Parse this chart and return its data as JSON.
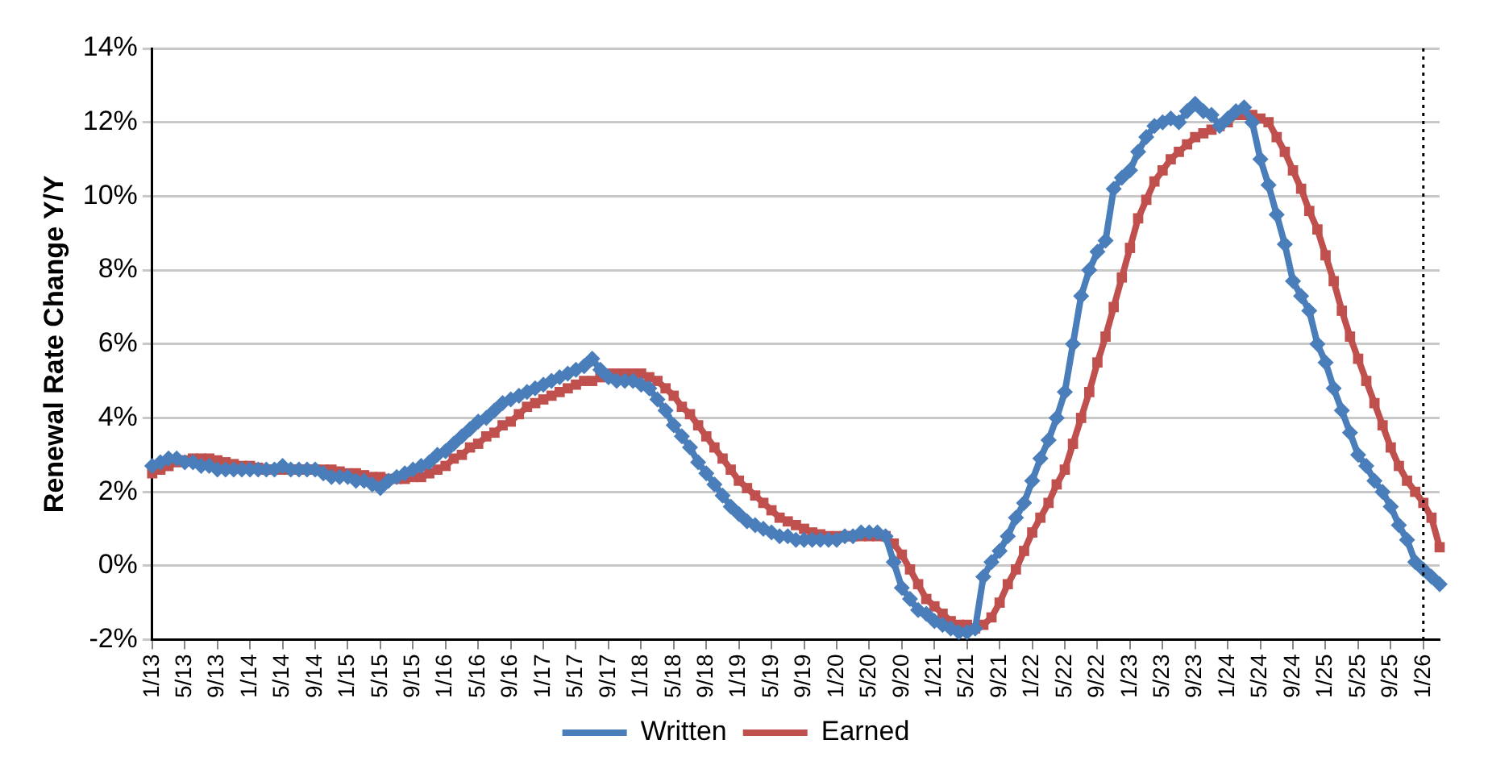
{
  "chart_data": {
    "type": "line",
    "ylabel": "Renewal Rate Change Y/Y",
    "categories": [
      "1/13",
      null,
      null,
      null,
      "5/13",
      null,
      null,
      null,
      "9/13",
      null,
      null,
      null,
      "1/14",
      null,
      null,
      null,
      "5/14",
      null,
      null,
      null,
      "9/14",
      null,
      null,
      null,
      "1/15",
      null,
      null,
      null,
      "5/15",
      null,
      null,
      null,
      "9/15",
      null,
      null,
      null,
      "1/16",
      null,
      null,
      null,
      "5/16",
      null,
      null,
      null,
      "9/16",
      null,
      null,
      null,
      "1/17",
      null,
      null,
      null,
      "5/17",
      null,
      null,
      null,
      "9/17",
      null,
      null,
      null,
      "1/18",
      null,
      null,
      null,
      "5/18",
      null,
      null,
      null,
      "9/18",
      null,
      null,
      null,
      "1/19",
      null,
      null,
      null,
      "5/19",
      null,
      null,
      null,
      "9/19",
      null,
      null,
      null,
      "1/20",
      null,
      null,
      null,
      "5/20",
      null,
      null,
      null,
      "9/20",
      null,
      null,
      null,
      "1/21",
      null,
      null,
      null,
      "5/21",
      null,
      null,
      null,
      "9/21",
      null,
      null,
      null,
      "1/22",
      null,
      null,
      null,
      "5/22",
      null,
      null,
      null,
      "9/22",
      null,
      null,
      null,
      "1/23",
      null,
      null,
      null,
      "5/23",
      null,
      null,
      null,
      "9/23",
      null,
      null,
      null,
      "1/24",
      null,
      null,
      null,
      "5/24",
      null,
      null,
      null,
      "9/24",
      null,
      null,
      null,
      "1/25",
      null,
      null,
      null,
      "5/25",
      null,
      null,
      null,
      "9/25",
      null,
      null,
      null,
      "1/26",
      null,
      null
    ],
    "series": [
      {
        "name": "Written",
        "color": "#4a7ebb",
        "marker": "diamond",
        "values": [
          2.7,
          2.8,
          2.9,
          2.9,
          2.8,
          2.8,
          2.7,
          2.7,
          2.6,
          2.6,
          2.6,
          2.6,
          2.6,
          2.6,
          2.6,
          2.6,
          2.7,
          2.6,
          2.6,
          2.6,
          2.6,
          2.5,
          2.4,
          2.4,
          2.4,
          2.3,
          2.3,
          2.2,
          2.1,
          2.3,
          2.4,
          2.5,
          2.6,
          2.7,
          2.8,
          3.0,
          3.1,
          3.3,
          3.5,
          3.7,
          3.9,
          4.0,
          4.2,
          4.4,
          4.5,
          4.6,
          4.7,
          4.8,
          4.9,
          5.0,
          5.1,
          5.2,
          5.3,
          5.4,
          5.6,
          5.3,
          5.1,
          5.0,
          5.0,
          5.0,
          4.9,
          4.8,
          4.5,
          4.2,
          3.8,
          3.5,
          3.2,
          2.8,
          2.5,
          2.2,
          1.9,
          1.6,
          1.4,
          1.2,
          1.1,
          1.0,
          0.9,
          0.8,
          0.8,
          0.7,
          0.7,
          0.7,
          0.7,
          0.7,
          0.7,
          0.8,
          0.8,
          0.9,
          0.9,
          0.9,
          0.8,
          0.1,
          -0.6,
          -0.9,
          -1.2,
          -1.3,
          -1.5,
          -1.6,
          -1.7,
          -1.8,
          -1.8,
          -1.7,
          -0.3,
          0.1,
          0.4,
          0.8,
          1.3,
          1.7,
          2.3,
          2.9,
          3.4,
          4.0,
          4.7,
          6.0,
          7.3,
          8.0,
          8.5,
          8.8,
          10.2,
          10.5,
          10.7,
          11.2,
          11.6,
          11.9,
          12.0,
          12.1,
          12.0,
          12.3,
          12.5,
          12.3,
          12.2,
          11.9,
          12.1,
          12.3,
          12.4,
          12.0,
          11.0,
          10.3,
          9.5,
          8.7,
          7.7,
          7.3,
          6.9,
          6.0,
          5.5,
          4.8,
          4.2,
          3.6,
          3.0,
          2.7,
          2.3,
          2.0,
          1.6,
          1.1,
          0.7,
          0.1,
          -0.1,
          -0.3,
          -0.5
        ]
      },
      {
        "name": "Earned",
        "color": "#c0504d",
        "marker": "square",
        "values": [
          2.5,
          2.6,
          2.7,
          2.8,
          2.85,
          2.9,
          2.9,
          2.9,
          2.85,
          2.8,
          2.75,
          2.7,
          2.7,
          2.65,
          2.6,
          2.6,
          2.6,
          2.6,
          2.6,
          2.6,
          2.6,
          2.6,
          2.6,
          2.55,
          2.5,
          2.5,
          2.45,
          2.4,
          2.4,
          2.35,
          2.35,
          2.35,
          2.4,
          2.4,
          2.5,
          2.6,
          2.7,
          2.9,
          3.0,
          3.2,
          3.3,
          3.5,
          3.6,
          3.8,
          3.9,
          4.1,
          4.3,
          4.4,
          4.5,
          4.6,
          4.7,
          4.8,
          4.9,
          5.0,
          5.0,
          5.1,
          5.2,
          5.2,
          5.2,
          5.2,
          5.2,
          5.1,
          5.0,
          4.8,
          4.6,
          4.3,
          4.1,
          3.8,
          3.5,
          3.2,
          2.9,
          2.6,
          2.3,
          2.1,
          1.9,
          1.7,
          1.5,
          1.3,
          1.2,
          1.1,
          1.0,
          0.9,
          0.85,
          0.8,
          0.8,
          0.8,
          0.8,
          0.8,
          0.8,
          0.8,
          0.8,
          0.6,
          0.3,
          -0.1,
          -0.5,
          -0.9,
          -1.1,
          -1.3,
          -1.5,
          -1.6,
          -1.6,
          -1.7,
          -1.6,
          -1.4,
          -1.0,
          -0.5,
          -0.1,
          0.4,
          0.9,
          1.3,
          1.7,
          2.2,
          2.6,
          3.3,
          4.0,
          4.7,
          5.5,
          6.2,
          7.0,
          7.8,
          8.6,
          9.4,
          9.9,
          10.4,
          10.7,
          11.0,
          11.2,
          11.4,
          11.6,
          11.7,
          11.8,
          11.9,
          12.0,
          12.2,
          12.2,
          12.2,
          12.1,
          12.0,
          11.6,
          11.2,
          10.7,
          10.2,
          9.6,
          9.1,
          8.4,
          7.7,
          6.9,
          6.2,
          5.6,
          5.0,
          4.4,
          3.8,
          3.2,
          2.7,
          2.3,
          2.0,
          1.7,
          1.3,
          0.5
        ]
      }
    ],
    "ylim": [
      -2,
      14
    ],
    "yticks": [
      {
        "value": -2,
        "label": "-2%"
      },
      {
        "value": 0,
        "label": "0%"
      },
      {
        "value": 2,
        "label": "2%"
      },
      {
        "value": 4,
        "label": "4%"
      },
      {
        "value": 6,
        "label": "6%"
      },
      {
        "value": 8,
        "label": "8%"
      },
      {
        "value": 10,
        "label": "10%"
      },
      {
        "value": 12,
        "label": "12%"
      },
      {
        "value": 14,
        "label": "14%"
      }
    ],
    "grid": "y",
    "legend": "bottom",
    "line_style": "solid",
    "ref_lines": [
      {
        "axis": "x",
        "value": "1/26",
        "color": "#000000",
        "line_style": "dotted"
      }
    ]
  }
}
